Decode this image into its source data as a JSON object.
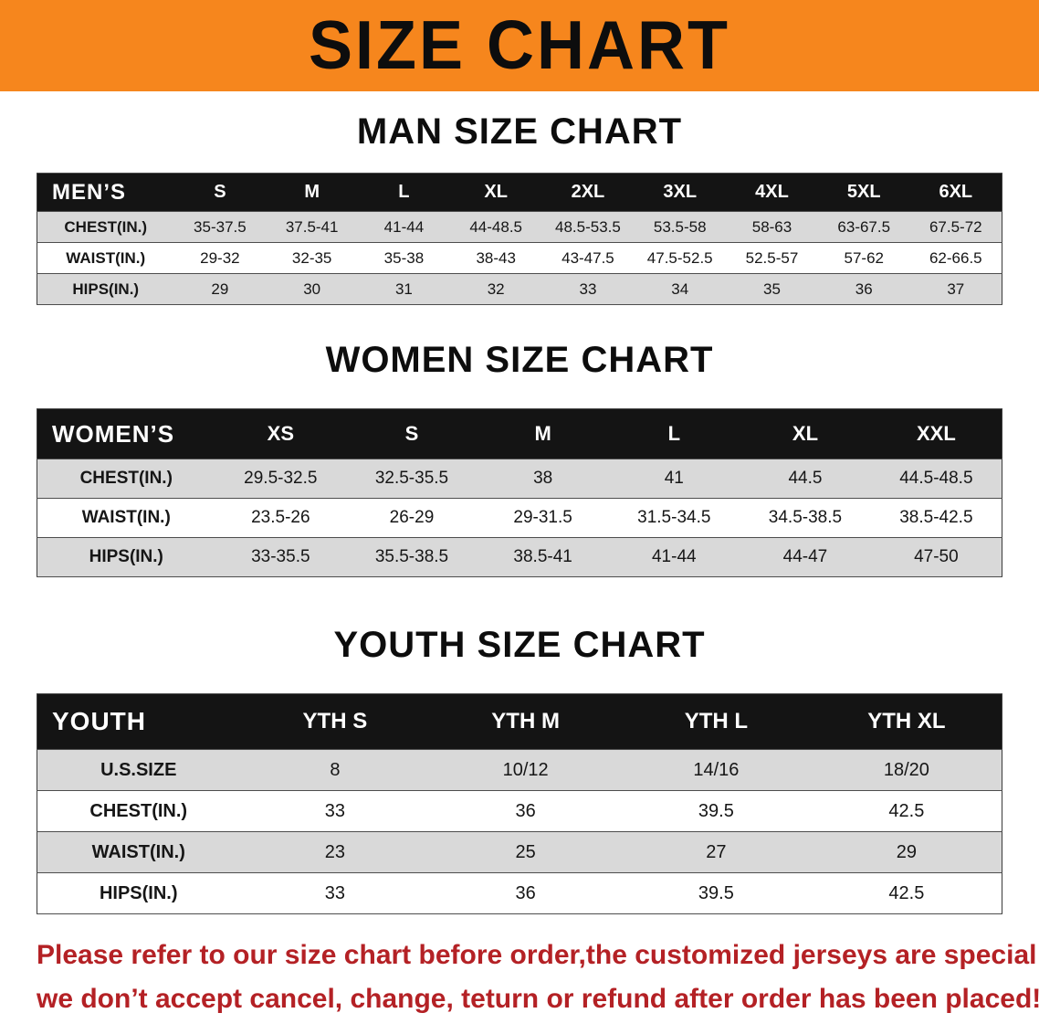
{
  "banner": {
    "title": "SIZE CHART"
  },
  "colors": {
    "banner_bg": "#F6861D",
    "table_header_bg": "#141414",
    "row_stripe": "#D9D9D9",
    "footer_text": "#B42125"
  },
  "chart_data": [
    {
      "type": "table",
      "title": "MAN SIZE CHART",
      "header": [
        "MEN’S",
        "S",
        "M",
        "L",
        "XL",
        "2XL",
        "3XL",
        "4XL",
        "5XL",
        "6XL"
      ],
      "rows": [
        [
          "CHEST(IN.)",
          "35-37.5",
          "37.5-41",
          "41-44",
          "44-48.5",
          "48.5-53.5",
          "53.5-58",
          "58-63",
          "63-67.5",
          "67.5-72"
        ],
        [
          "WAIST(IN.)",
          "29-32",
          "32-35",
          "35-38",
          "38-43",
          "43-47.5",
          "47.5-52.5",
          "52.5-57",
          "57-62",
          "62-66.5"
        ],
        [
          "HIPS(IN.)",
          "29",
          "30",
          "31",
          "32",
          "33",
          "34",
          "35",
          "36",
          "37"
        ]
      ]
    },
    {
      "type": "table",
      "title": "WOMEN SIZE CHART",
      "header": [
        "WOMEN’S",
        "XS",
        "S",
        "M",
        "L",
        "XL",
        "XXL"
      ],
      "rows": [
        [
          "CHEST(IN.)",
          "29.5-32.5",
          "32.5-35.5",
          "38",
          "41",
          "44.5",
          "44.5-48.5"
        ],
        [
          "WAIST(IN.)",
          "23.5-26",
          "26-29",
          "29-31.5",
          "31.5-34.5",
          "34.5-38.5",
          "38.5-42.5"
        ],
        [
          "HIPS(IN.)",
          "33-35.5",
          "35.5-38.5",
          "38.5-41",
          "41-44",
          "44-47",
          "47-50"
        ]
      ]
    },
    {
      "type": "table",
      "title": "YOUTH SIZE CHART",
      "header": [
        "YOUTH",
        "YTH S",
        "YTH M",
        "YTH L",
        "YTH XL"
      ],
      "rows": [
        [
          "U.S.SIZE",
          "8",
          "10/12",
          "14/16",
          "18/20"
        ],
        [
          "CHEST(IN.)",
          "33",
          "36",
          "39.5",
          "42.5"
        ],
        [
          "WAIST(IN.)",
          "23",
          "25",
          "27",
          "29"
        ],
        [
          "HIPS(IN.)",
          "33",
          "36",
          "39.5",
          "42.5"
        ]
      ]
    }
  ],
  "footer": {
    "line1": "Please refer to our size chart before order,the customized jerseys are special products,",
    "line2": "we don’t accept cancel, change, teturn or refund after order has been placed!"
  }
}
